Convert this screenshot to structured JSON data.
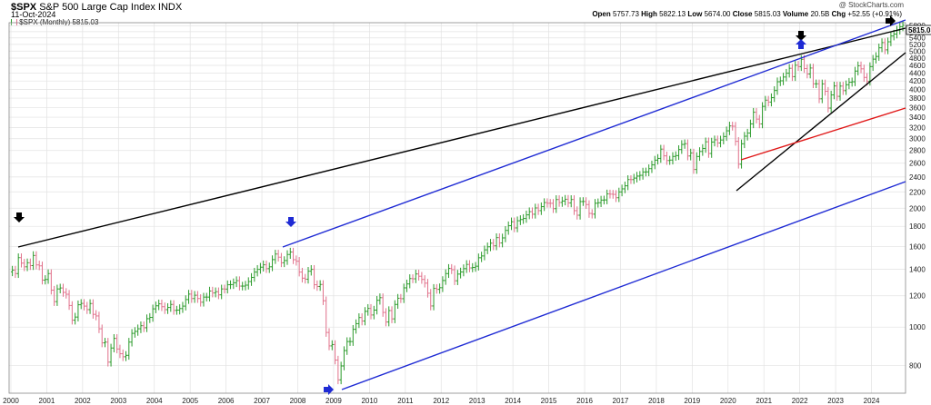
{
  "header": {
    "symbol": "$SPX",
    "name": "S&P 500 Large Cap Index",
    "exchange": "INDX",
    "date": "11-Oct-2024",
    "watermark": "@ StockCharts.com",
    "open_label": "Open",
    "open": "5757.73",
    "high_label": "High",
    "high": "5822.13",
    "low_label": "Low",
    "low": "5674.00",
    "close_label": "Close",
    "close": "5815.03",
    "volume_label": "Volume",
    "volume": "20.5B",
    "chg_label": "Chg",
    "chg": "+52.55 (+0.91%)",
    "legend": "$SPX (Monthly) 5815.03",
    "last_price": "5815.03"
  },
  "colors": {
    "up": "#2a9a2a",
    "down": "#e0708a",
    "black_line": "#000000",
    "blue_line": "#1f2bd4",
    "red_line": "#e01818",
    "arrow_black": "#000000",
    "arrow_blue": "#1f2bd4"
  },
  "chart_data": {
    "type": "ohlc",
    "interval": "monthly",
    "scale": "log",
    "x_ticks": [
      "2000",
      "2001",
      "2002",
      "2003",
      "2004",
      "2005",
      "2006",
      "2007",
      "2008",
      "2009",
      "2010",
      "2011",
      "2012",
      "2013",
      "2014",
      "2015",
      "2016",
      "2017",
      "2018",
      "2019",
      "2020",
      "2021",
      "2022",
      "2023",
      "2024"
    ],
    "y_ticks": [
      "800",
      "1000",
      "1200",
      "1400",
      "1600",
      "1800",
      "2000",
      "2200",
      "2400",
      "2600",
      "2800",
      "3000",
      "3200",
      "3400",
      "3600",
      "3800",
      "4000",
      "4200",
      "4400",
      "4600",
      "4800",
      "5000",
      "5200",
      "5400",
      "5600",
      "5800"
    ],
    "ylim": [
      680,
      5900
    ],
    "xlim": [
      1999.95,
      2024.95
    ],
    "closes": [
      1394,
      1366,
      1499,
      1452,
      1421,
      1455,
      1431,
      1518,
      1437,
      1429,
      1315,
      1320,
      1366,
      1240,
      1160,
      1249,
      1256,
      1224,
      1211,
      1134,
      1041,
      1060,
      1139,
      1148,
      1130,
      1107,
      1147,
      1077,
      1067,
      990,
      912,
      916,
      815,
      885,
      936,
      880,
      856,
      841,
      848,
      916,
      964,
      975,
      990,
      1008,
      996,
      1050,
      1058,
      1112,
      1132,
      1145,
      1126,
      1107,
      1121,
      1141,
      1102,
      1104,
      1114,
      1130,
      1174,
      1212,
      1181,
      1204,
      1181,
      1156,
      1191,
      1191,
      1234,
      1220,
      1229,
      1207,
      1249,
      1248,
      1280,
      1281,
      1295,
      1311,
      1270,
      1270,
      1277,
      1304,
      1336,
      1378,
      1400,
      1418,
      1438,
      1406,
      1421,
      1482,
      1531,
      1503,
      1455,
      1474,
      1527,
      1549,
      1481,
      1468,
      1378,
      1330,
      1322,
      1385,
      1400,
      1280,
      1267,
      1282,
      1166,
      969,
      896,
      903,
      825,
      735,
      797,
      872,
      919,
      919,
      987,
      1020,
      1057,
      1036,
      1096,
      1115,
      1073,
      1104,
      1169,
      1187,
      1089,
      1030,
      1101,
      1049,
      1141,
      1183,
      1180,
      1257,
      1286,
      1327,
      1325,
      1363,
      1345,
      1320,
      1292,
      1218,
      1131,
      1253,
      1246,
      1258,
      1312,
      1366,
      1408,
      1397,
      1310,
      1362,
      1379,
      1406,
      1441,
      1412,
      1416,
      1426,
      1498,
      1514,
      1569,
      1597,
      1631,
      1606,
      1685,
      1633,
      1682,
      1757,
      1806,
      1848,
      1783,
      1859,
      1872,
      1884,
      1924,
      1960,
      1931,
      2003,
      1972,
      2018,
      2067,
      2059,
      2058,
      1995,
      2104,
      2068,
      2086,
      2107,
      2063,
      2104,
      1972,
      1920,
      2079,
      2080,
      2043,
      1940,
      1932,
      2059,
      2065,
      2097,
      2099,
      2174,
      2171,
      2168,
      2126,
      2199,
      2239,
      2279,
      2364,
      2363,
      2384,
      2412,
      2423,
      2470,
      2472,
      2519,
      2575,
      2647,
      2674,
      2823,
      2714,
      2641,
      2648,
      2705,
      2718,
      2816,
      2901,
      2914,
      2712,
      2760,
      2507,
      2704,
      2784,
      2834,
      2946,
      2752,
      2942,
      2980,
      2926,
      2977,
      3038,
      3141,
      3231,
      3226,
      2954,
      2585,
      2912,
      3044,
      3100,
      3271,
      3500,
      3363,
      3270,
      3622,
      3756,
      3714,
      3811,
      3973,
      4181,
      4204,
      4298,
      4395,
      4523,
      4308,
      4605,
      4567,
      4766,
      4516,
      4374,
      4530,
      4132,
      4132,
      3785,
      4130,
      3955,
      3586,
      3872,
      4080,
      3840,
      4077,
      3970,
      4109,
      4169,
      4180,
      4450,
      4589,
      4508,
      4288,
      4194,
      4568,
      4770,
      4846,
      5096,
      5254,
      5036,
      5278,
      5460,
      5522,
      5648,
      5762,
      5815
    ]
  }
}
